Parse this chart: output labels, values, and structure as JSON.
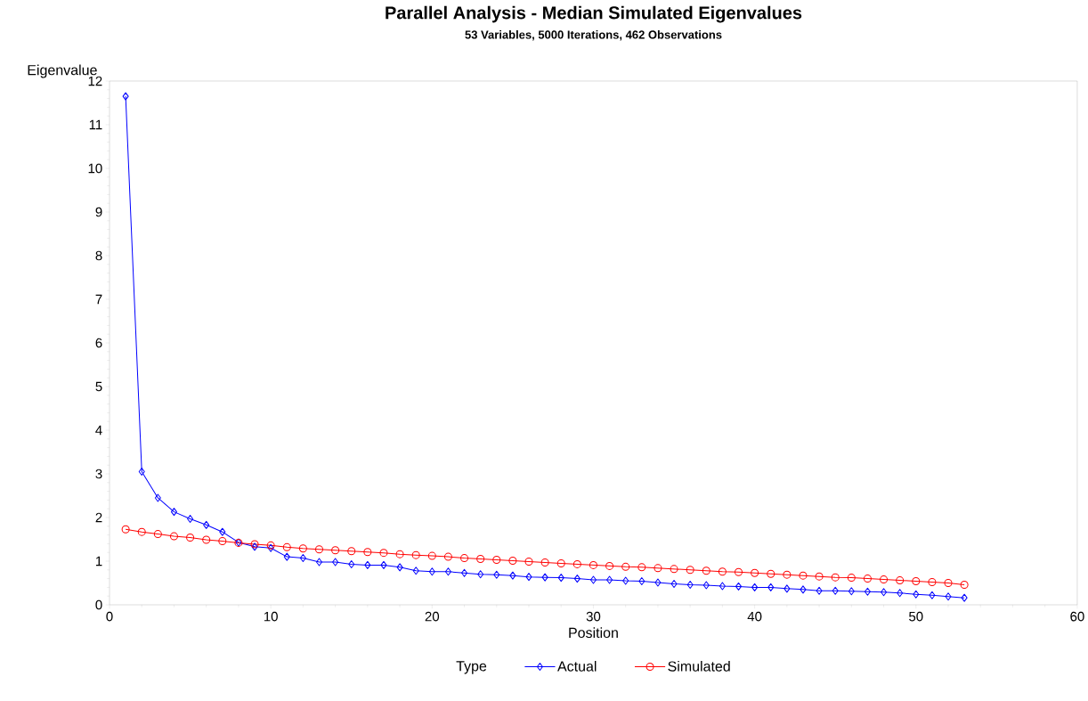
{
  "chart_data": {
    "type": "line",
    "title": "Parallel Analysis - Median Simulated Eigenvalues",
    "subtitle": "53 Variables, 5000 Iterations, 462 Observations",
    "xlabel": "Position",
    "ylabel": "Eigenvalue",
    "legend_title": "Type",
    "x": [
      1,
      2,
      3,
      4,
      5,
      6,
      7,
      8,
      9,
      10,
      11,
      12,
      13,
      14,
      15,
      16,
      17,
      18,
      19,
      20,
      21,
      22,
      23,
      24,
      25,
      26,
      27,
      28,
      29,
      30,
      31,
      32,
      33,
      34,
      35,
      36,
      37,
      38,
      39,
      40,
      41,
      42,
      43,
      44,
      45,
      46,
      47,
      48,
      49,
      50,
      51,
      52,
      53
    ],
    "series": [
      {
        "name": "Actual",
        "color": "#0000ff",
        "marker": "diamond",
        "values": [
          11.65,
          3.05,
          2.45,
          2.13,
          1.97,
          1.83,
          1.67,
          1.43,
          1.33,
          1.3,
          1.1,
          1.07,
          0.98,
          0.98,
          0.93,
          0.91,
          0.91,
          0.86,
          0.78,
          0.76,
          0.76,
          0.73,
          0.7,
          0.69,
          0.67,
          0.64,
          0.63,
          0.62,
          0.6,
          0.57,
          0.57,
          0.55,
          0.54,
          0.51,
          0.48,
          0.46,
          0.45,
          0.43,
          0.42,
          0.4,
          0.4,
          0.37,
          0.35,
          0.32,
          0.32,
          0.31,
          0.3,
          0.29,
          0.27,
          0.24,
          0.22,
          0.19,
          0.16
        ]
      },
      {
        "name": "Simulated",
        "color": "#ff0000",
        "marker": "circle",
        "values": [
          1.73,
          1.67,
          1.62,
          1.57,
          1.54,
          1.49,
          1.46,
          1.42,
          1.39,
          1.36,
          1.32,
          1.29,
          1.27,
          1.25,
          1.23,
          1.21,
          1.19,
          1.16,
          1.14,
          1.12,
          1.1,
          1.07,
          1.05,
          1.03,
          1.01,
          0.99,
          0.97,
          0.95,
          0.93,
          0.91,
          0.89,
          0.87,
          0.86,
          0.84,
          0.82,
          0.8,
          0.78,
          0.76,
          0.75,
          0.73,
          0.71,
          0.69,
          0.67,
          0.65,
          0.63,
          0.62,
          0.6,
          0.58,
          0.56,
          0.54,
          0.52,
          0.5,
          0.46
        ]
      }
    ],
    "xlim": [
      0,
      60
    ],
    "xticks": [
      0,
      10,
      20,
      30,
      40,
      50,
      60
    ],
    "ylim": [
      0,
      12
    ],
    "yticks": [
      0,
      1,
      2,
      3,
      4,
      5,
      6,
      7,
      8,
      9,
      10,
      11,
      12
    ],
    "grid": false,
    "legend": "bottom",
    "line_style": "solid"
  }
}
